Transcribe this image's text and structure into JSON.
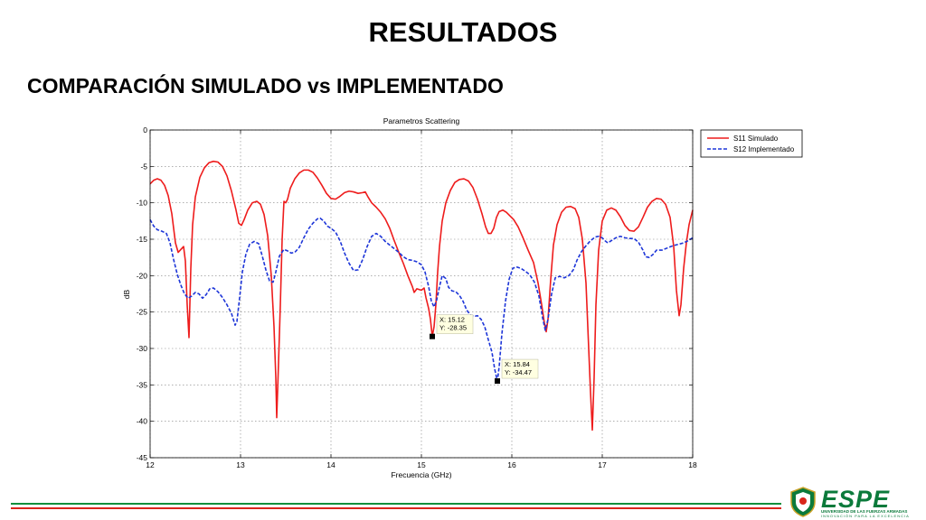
{
  "slide": {
    "title": "RESULTADOS",
    "subtitle": "COMPARACIÓN SIMULADO vs IMPLEMENTADO"
  },
  "colors": {
    "s11": "#ee1c1c",
    "s12": "#1d35d8",
    "footer_green": "#0b8f3c",
    "footer_red": "#d9261c",
    "logo_green": "#0b7a3b"
  },
  "chart_data": {
    "type": "line",
    "title": "Parametros Scattering",
    "xlabel": "Frecuencia (GHz)",
    "ylabel": "dB",
    "xlim": [
      12,
      18
    ],
    "ylim": [
      -45,
      0
    ],
    "xticks": [
      12,
      13,
      14,
      15,
      16,
      17,
      18
    ],
    "yticks": [
      0,
      -5,
      -10,
      -15,
      -20,
      -25,
      -30,
      -35,
      -40,
      -45
    ],
    "grid": true,
    "legend": "top-right",
    "series": [
      {
        "name": "S11 Simulado",
        "style": "solid",
        "points": [
          [
            12.0,
            -7.4
          ],
          [
            12.04,
            -6.9
          ],
          [
            12.08,
            -6.7
          ],
          [
            12.12,
            -6.9
          ],
          [
            12.16,
            -7.6
          ],
          [
            12.2,
            -9.0
          ],
          [
            12.24,
            -11.5
          ],
          [
            12.28,
            -15.5
          ],
          [
            12.31,
            -16.8
          ],
          [
            12.34,
            -16.4
          ],
          [
            12.37,
            -16.0
          ],
          [
            12.39,
            -18.0
          ],
          [
            12.41,
            -24.0
          ],
          [
            12.43,
            -28.5
          ],
          [
            12.45,
            -19.0
          ],
          [
            12.47,
            -13.0
          ],
          [
            12.5,
            -9.2
          ],
          [
            12.55,
            -6.5
          ],
          [
            12.6,
            -5.2
          ],
          [
            12.65,
            -4.5
          ],
          [
            12.7,
            -4.3
          ],
          [
            12.75,
            -4.4
          ],
          [
            12.8,
            -5.0
          ],
          [
            12.85,
            -6.3
          ],
          [
            12.9,
            -8.4
          ],
          [
            12.95,
            -11.0
          ],
          [
            12.98,
            -12.8
          ],
          [
            13.01,
            -13.1
          ],
          [
            13.04,
            -12.3
          ],
          [
            13.08,
            -11.0
          ],
          [
            13.13,
            -10.0
          ],
          [
            13.18,
            -9.8
          ],
          [
            13.22,
            -10.2
          ],
          [
            13.26,
            -11.6
          ],
          [
            13.3,
            -14.5
          ],
          [
            13.34,
            -20.0
          ],
          [
            13.37,
            -27.0
          ],
          [
            13.39,
            -34.0
          ],
          [
            13.4,
            -39.5
          ],
          [
            13.42,
            -32.0
          ],
          [
            13.44,
            -24.0
          ],
          [
            13.46,
            -15.0
          ],
          [
            13.48,
            -9.8
          ],
          [
            13.5,
            -10.0
          ],
          [
            13.52,
            -9.5
          ],
          [
            13.55,
            -8.0
          ],
          [
            13.6,
            -6.7
          ],
          [
            13.65,
            -5.9
          ],
          [
            13.7,
            -5.5
          ],
          [
            13.75,
            -5.5
          ],
          [
            13.8,
            -5.8
          ],
          [
            13.85,
            -6.6
          ],
          [
            13.9,
            -7.6
          ],
          [
            13.95,
            -8.7
          ],
          [
            14.0,
            -9.4
          ],
          [
            14.05,
            -9.5
          ],
          [
            14.1,
            -9.1
          ],
          [
            14.15,
            -8.6
          ],
          [
            14.2,
            -8.4
          ],
          [
            14.25,
            -8.5
          ],
          [
            14.3,
            -8.7
          ],
          [
            14.35,
            -8.6
          ],
          [
            14.38,
            -8.5
          ],
          [
            14.41,
            -9.2
          ],
          [
            14.45,
            -10.0
          ],
          [
            14.5,
            -10.6
          ],
          [
            14.55,
            -11.3
          ],
          [
            14.6,
            -12.2
          ],
          [
            14.65,
            -13.5
          ],
          [
            14.7,
            -15.2
          ],
          [
            14.75,
            -16.8
          ],
          [
            14.8,
            -18.3
          ],
          [
            14.85,
            -20.0
          ],
          [
            14.9,
            -21.5
          ],
          [
            14.92,
            -22.3
          ],
          [
            14.95,
            -21.8
          ],
          [
            15.0,
            -22.0
          ],
          [
            15.03,
            -21.7
          ],
          [
            15.05,
            -23.0
          ],
          [
            15.08,
            -24.5
          ],
          [
            15.1,
            -26.0
          ],
          [
            15.12,
            -28.35
          ],
          [
            15.14,
            -27.0
          ],
          [
            15.16,
            -24.0
          ],
          [
            15.18,
            -19.5
          ],
          [
            15.2,
            -16.0
          ],
          [
            15.23,
            -12.5
          ],
          [
            15.27,
            -10.0
          ],
          [
            15.32,
            -8.3
          ],
          [
            15.37,
            -7.2
          ],
          [
            15.42,
            -6.8
          ],
          [
            15.47,
            -6.7
          ],
          [
            15.52,
            -7.0
          ],
          [
            15.57,
            -7.9
          ],
          [
            15.62,
            -9.5
          ],
          [
            15.67,
            -11.5
          ],
          [
            15.71,
            -13.3
          ],
          [
            15.74,
            -14.2
          ],
          [
            15.77,
            -14.2
          ],
          [
            15.8,
            -13.5
          ],
          [
            15.83,
            -12.0
          ],
          [
            15.86,
            -11.2
          ],
          [
            15.9,
            -11.0
          ],
          [
            15.94,
            -11.3
          ],
          [
            15.98,
            -11.8
          ],
          [
            16.02,
            -12.3
          ],
          [
            16.07,
            -13.3
          ],
          [
            16.12,
            -14.7
          ],
          [
            16.18,
            -16.5
          ],
          [
            16.24,
            -18.2
          ],
          [
            16.29,
            -21.0
          ],
          [
            16.33,
            -24.0
          ],
          [
            16.36,
            -26.5
          ],
          [
            16.38,
            -27.7
          ],
          [
            16.4,
            -26.0
          ],
          [
            16.43,
            -20.5
          ],
          [
            16.46,
            -15.8
          ],
          [
            16.5,
            -13.0
          ],
          [
            16.55,
            -11.3
          ],
          [
            16.6,
            -10.6
          ],
          [
            16.65,
            -10.5
          ],
          [
            16.7,
            -10.8
          ],
          [
            16.74,
            -12.0
          ],
          [
            16.78,
            -15.0
          ],
          [
            16.82,
            -21.0
          ],
          [
            16.85,
            -30.0
          ],
          [
            16.87,
            -36.0
          ],
          [
            16.89,
            -41.2
          ],
          [
            16.91,
            -34.0
          ],
          [
            16.93,
            -24.0
          ],
          [
            16.96,
            -16.5
          ],
          [
            17.0,
            -12.5
          ],
          [
            17.05,
            -11.0
          ],
          [
            17.1,
            -10.7
          ],
          [
            17.15,
            -11.0
          ],
          [
            17.2,
            -11.9
          ],
          [
            17.25,
            -13.1
          ],
          [
            17.3,
            -13.8
          ],
          [
            17.35,
            -13.9
          ],
          [
            17.4,
            -13.3
          ],
          [
            17.45,
            -12.0
          ],
          [
            17.5,
            -10.6
          ],
          [
            17.55,
            -9.8
          ],
          [
            17.6,
            -9.4
          ],
          [
            17.65,
            -9.5
          ],
          [
            17.7,
            -10.2
          ],
          [
            17.75,
            -12.0
          ],
          [
            17.79,
            -16.0
          ],
          [
            17.82,
            -22.0
          ],
          [
            17.85,
            -25.5
          ],
          [
            17.87,
            -24.0
          ],
          [
            17.9,
            -19.0
          ],
          [
            17.93,
            -15.5
          ],
          [
            17.96,
            -13.0
          ],
          [
            18.0,
            -11.0
          ]
        ]
      },
      {
        "name": "S12 Implementado",
        "style": "dashed",
        "points": [
          [
            12.0,
            -12.3
          ],
          [
            12.04,
            -13.2
          ],
          [
            12.08,
            -13.7
          ],
          [
            12.13,
            -13.9
          ],
          [
            12.18,
            -14.2
          ],
          [
            12.22,
            -15.5
          ],
          [
            12.26,
            -17.8
          ],
          [
            12.3,
            -19.8
          ],
          [
            12.34,
            -21.3
          ],
          [
            12.38,
            -22.5
          ],
          [
            12.42,
            -23.1
          ],
          [
            12.46,
            -22.8
          ],
          [
            12.5,
            -22.3
          ],
          [
            12.54,
            -22.5
          ],
          [
            12.58,
            -23.1
          ],
          [
            12.62,
            -22.6
          ],
          [
            12.66,
            -21.8
          ],
          [
            12.7,
            -21.7
          ],
          [
            12.75,
            -22.2
          ],
          [
            12.8,
            -23.0
          ],
          [
            12.85,
            -24.0
          ],
          [
            12.9,
            -25.2
          ],
          [
            12.94,
            -26.8
          ],
          [
            12.96,
            -26.3
          ],
          [
            12.99,
            -23.0
          ],
          [
            13.02,
            -19.5
          ],
          [
            13.06,
            -17.0
          ],
          [
            13.1,
            -15.7
          ],
          [
            13.15,
            -15.3
          ],
          [
            13.2,
            -15.6
          ],
          [
            13.24,
            -17.3
          ],
          [
            13.28,
            -19.2
          ],
          [
            13.32,
            -20.7
          ],
          [
            13.36,
            -20.9
          ],
          [
            13.39,
            -19.5
          ],
          [
            13.43,
            -17.3
          ],
          [
            13.48,
            -16.4
          ],
          [
            13.52,
            -16.6
          ],
          [
            13.56,
            -16.9
          ],
          [
            13.6,
            -16.8
          ],
          [
            13.65,
            -16.1
          ],
          [
            13.7,
            -14.8
          ],
          [
            13.75,
            -13.6
          ],
          [
            13.8,
            -12.8
          ],
          [
            13.85,
            -12.2
          ],
          [
            13.88,
            -12.1
          ],
          [
            13.92,
            -12.5
          ],
          [
            13.96,
            -13.2
          ],
          [
            14.0,
            -13.5
          ],
          [
            14.05,
            -14.0
          ],
          [
            14.1,
            -15.2
          ],
          [
            14.15,
            -16.9
          ],
          [
            14.2,
            -18.3
          ],
          [
            14.25,
            -19.3
          ],
          [
            14.3,
            -19.2
          ],
          [
            14.35,
            -17.8
          ],
          [
            14.4,
            -16.0
          ],
          [
            14.45,
            -14.6
          ],
          [
            14.5,
            -14.2
          ],
          [
            14.55,
            -14.6
          ],
          [
            14.6,
            -15.3
          ],
          [
            14.65,
            -15.8
          ],
          [
            14.7,
            -16.3
          ],
          [
            14.75,
            -16.8
          ],
          [
            14.8,
            -17.4
          ],
          [
            14.85,
            -17.8
          ],
          [
            14.9,
            -17.9
          ],
          [
            14.95,
            -18.1
          ],
          [
            15.0,
            -18.5
          ],
          [
            15.04,
            -19.5
          ],
          [
            15.08,
            -21.5
          ],
          [
            15.11,
            -23.5
          ],
          [
            15.14,
            -24.3
          ],
          [
            15.17,
            -23.3
          ],
          [
            15.2,
            -21.5
          ],
          [
            15.23,
            -20.0
          ],
          [
            15.27,
            -20.4
          ],
          [
            15.3,
            -21.6
          ],
          [
            15.34,
            -22.1
          ],
          [
            15.38,
            -22.2
          ],
          [
            15.42,
            -22.7
          ],
          [
            15.46,
            -23.5
          ],
          [
            15.5,
            -24.7
          ],
          [
            15.54,
            -25.4
          ],
          [
            15.58,
            -25.6
          ],
          [
            15.62,
            -25.5
          ],
          [
            15.66,
            -26.0
          ],
          [
            15.7,
            -27.0
          ],
          [
            15.74,
            -28.8
          ],
          [
            15.78,
            -30.5
          ],
          [
            15.81,
            -32.8
          ],
          [
            15.84,
            -34.47
          ],
          [
            15.86,
            -32.5
          ],
          [
            15.89,
            -28.0
          ],
          [
            15.93,
            -23.5
          ],
          [
            15.97,
            -20.5
          ],
          [
            16.01,
            -19.0
          ],
          [
            16.05,
            -18.8
          ],
          [
            16.1,
            -19.0
          ],
          [
            16.15,
            -19.4
          ],
          [
            16.2,
            -19.9
          ],
          [
            16.25,
            -20.9
          ],
          [
            16.3,
            -22.8
          ],
          [
            16.34,
            -25.8
          ],
          [
            16.37,
            -27.5
          ],
          [
            16.4,
            -26.0
          ],
          [
            16.44,
            -22.5
          ],
          [
            16.48,
            -20.3
          ],
          [
            16.53,
            -20.1
          ],
          [
            16.58,
            -20.3
          ],
          [
            16.63,
            -20.0
          ],
          [
            16.68,
            -19.2
          ],
          [
            16.72,
            -17.9
          ],
          [
            16.77,
            -16.7
          ],
          [
            16.82,
            -15.9
          ],
          [
            16.87,
            -15.2
          ],
          [
            16.92,
            -14.7
          ],
          [
            16.96,
            -14.6
          ],
          [
            17.0,
            -14.8
          ],
          [
            17.03,
            -15.2
          ],
          [
            17.06,
            -15.5
          ],
          [
            17.1,
            -15.2
          ],
          [
            17.15,
            -14.8
          ],
          [
            17.2,
            -14.6
          ],
          [
            17.25,
            -14.8
          ],
          [
            17.3,
            -14.9
          ],
          [
            17.35,
            -14.9
          ],
          [
            17.4,
            -15.4
          ],
          [
            17.45,
            -16.5
          ],
          [
            17.48,
            -17.4
          ],
          [
            17.52,
            -17.5
          ],
          [
            17.56,
            -17.1
          ],
          [
            17.6,
            -16.5
          ],
          [
            17.66,
            -16.5
          ],
          [
            17.72,
            -16.2
          ],
          [
            17.78,
            -15.9
          ],
          [
            17.84,
            -15.7
          ],
          [
            17.9,
            -15.5
          ],
          [
            17.95,
            -15.2
          ],
          [
            18.0,
            -14.8
          ]
        ]
      }
    ],
    "annotations": [
      {
        "x": 15.12,
        "y": -28.35,
        "lines": [
          "X: 15.12",
          "Y: -28.35"
        ]
      },
      {
        "x": 15.84,
        "y": -34.47,
        "lines": [
          "X: 15.84",
          "Y: -34.47"
        ]
      }
    ]
  },
  "logo": {
    "name": "ESPE",
    "tagline_1": "UNIVERSIDAD DE LAS FUERZAS ARMADAS",
    "tagline_2": "INNOVACIÓN PARA LA EXCELENCIA"
  }
}
